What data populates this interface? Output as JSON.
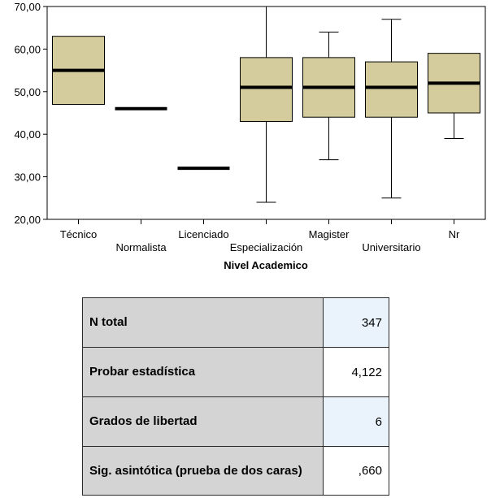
{
  "chart_data": {
    "type": "boxplot",
    "xlabel": "Nivel Academico",
    "ylabel": "",
    "ylim": [
      20,
      70
    ],
    "yticks": [
      "20,00",
      "30,00",
      "40,00",
      "50,00",
      "60,00",
      "70,00"
    ],
    "grid": false,
    "colors": {
      "box_fill": "#d4cc9c",
      "border": "#000000",
      "background": "#ffffff"
    },
    "categories": [
      "Técnico",
      "Normalista",
      "Licenciado",
      "Especialización",
      "Magister",
      "Universitario",
      "Nr"
    ],
    "boxes": [
      {
        "category": "Técnico",
        "min": 47,
        "q1": 47,
        "median": 55,
        "q3": 63,
        "max": 63
      },
      {
        "category": "Normalista",
        "min": 46,
        "q1": 46,
        "median": 46,
        "q3": 46,
        "max": 46
      },
      {
        "category": "Licenciado",
        "min": 32,
        "q1": 32,
        "median": 32,
        "q3": 32,
        "max": 32
      },
      {
        "category": "Especialización",
        "min": 24,
        "q1": 43,
        "median": 51,
        "q3": 58,
        "max": 70
      },
      {
        "category": "Magister",
        "min": 34,
        "q1": 44,
        "median": 51,
        "q3": 58,
        "max": 64
      },
      {
        "category": "Universitario",
        "min": 25,
        "q1": 44,
        "median": 51,
        "q3": 57,
        "max": 67
      },
      {
        "category": "Nr",
        "min": 39,
        "q1": 45,
        "median": 52,
        "q3": 59,
        "max": 59
      }
    ]
  },
  "stats_table": {
    "rows": [
      {
        "label": "N total",
        "value": "347"
      },
      {
        "label": "Probar estadística",
        "value": "4,122"
      },
      {
        "label": "Grados de libertad",
        "value": "6"
      },
      {
        "label": "Sig. asintótica (prueba de dos caras)",
        "value": ",660"
      }
    ]
  }
}
